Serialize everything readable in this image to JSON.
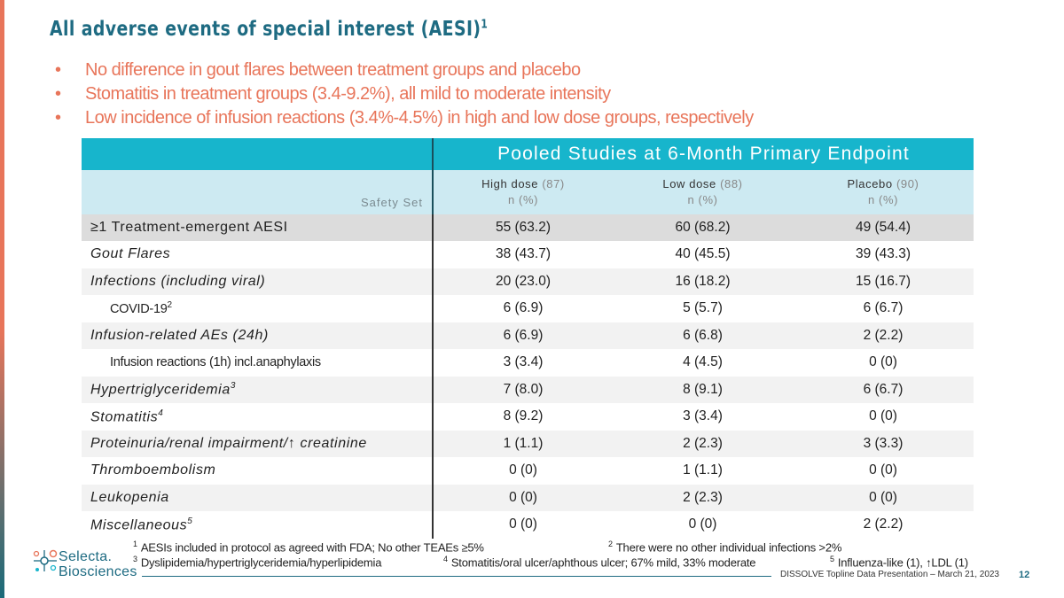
{
  "title": {
    "text": "All adverse events of special interest (AESI)",
    "sup": "1"
  },
  "bullets": [
    "No difference in gout flares between treatment groups and placebo",
    "Stomatitis in treatment groups (3.4-9.2%), all mild to moderate intensity",
    "Low incidence of infusion reactions (3.4%-4.5%) in high and low dose groups, respectively"
  ],
  "table": {
    "header": "Pooled Studies at 6-Month Primary Endpoint",
    "safety_set": "Safety Set",
    "columns": [
      {
        "label": "High dose",
        "count": "(87)",
        "unit": "n (%)"
      },
      {
        "label": "Low dose",
        "count": "(88)",
        "unit": "n (%)"
      },
      {
        "label": "Placebo",
        "count": "(90)",
        "unit": "n (%)"
      }
    ],
    "rows": [
      {
        "label": "≥1 Treatment-emergent AESI",
        "sup": "",
        "values": [
          "55 (63.2)",
          "60 (68.2)",
          "49 (54.4)"
        ]
      },
      {
        "label": "Gout Flares",
        "sup": "",
        "values": [
          "38 (43.7)",
          "40 (45.5)",
          "39 (43.3)"
        ]
      },
      {
        "label": "Infections (including viral)",
        "sup": "",
        "values": [
          "20 (23.0)",
          "16 (18.2)",
          "15 (16.7)"
        ]
      },
      {
        "label": "COVID-19",
        "sup": "2",
        "values": [
          "6 (6.9)",
          "5 (5.7)",
          "6 (6.7)"
        ]
      },
      {
        "label": "Infusion-related AEs (24h)",
        "sup": "",
        "values": [
          "6 (6.9)",
          "6 (6.8)",
          "2 (2.2)"
        ]
      },
      {
        "label": "Infusion reactions (1h) incl.anaphylaxis",
        "sup": "",
        "values": [
          "3 (3.4)",
          "4 (4.5)",
          "0 (0)"
        ]
      },
      {
        "label": "Hypertriglyceridemia",
        "sup": "3",
        "values": [
          "7 (8.0)",
          "8 (9.1)",
          "6 (6.7)"
        ]
      },
      {
        "label": "Stomatitis",
        "sup": "4",
        "values": [
          "8 (9.2)",
          "3 (3.4)",
          "0 (0)"
        ]
      },
      {
        "label": "Proteinuria/renal impairment/↑ creatinine",
        "sup": "",
        "values": [
          "1 (1.1)",
          "2 (2.3)",
          "3 (3.3)"
        ]
      },
      {
        "label": "Thromboembolism",
        "sup": "",
        "values": [
          "0 (0)",
          "1 (1.1)",
          "0 (0)"
        ]
      },
      {
        "label": "Leukopenia",
        "sup": "",
        "values": [
          "0 (0)",
          "2 (2.3)",
          "0 (0)"
        ]
      },
      {
        "label": "Miscellaneous",
        "sup": "5",
        "values": [
          "0 (0)",
          "0 (0)",
          "2 (2.2)"
        ]
      }
    ]
  },
  "footnotes": {
    "f1": {
      "num": "1",
      "text": "AESIs included in protocol as agreed with FDA; No other TEAEs ≥5%"
    },
    "f2": {
      "num": "2",
      "text": "There were no other individual infections >2%"
    },
    "f3": {
      "num": "3",
      "text": "Dyslipidemia/hypertriglyceridemia/hyperlipidemia"
    },
    "f4": {
      "num": "4",
      "text": "Stomatitis/oral ulcer/aphthous ulcer; 67% mild, 33% moderate"
    },
    "f5": {
      "num": "5",
      "text": "Influenza-like (1), ↑LDL (1)"
    }
  },
  "footer": {
    "logo_line1": "Selecta.",
    "logo_line2": "Biosciences",
    "presentation": "DISSOLVE Topline Data  Presentation – March 21, 2023",
    "page": "12"
  },
  "colors": {
    "accent": "#e8755a",
    "brand": "#1e6b82",
    "header": "#17b5cc",
    "subheader": "#cdeaf2"
  }
}
